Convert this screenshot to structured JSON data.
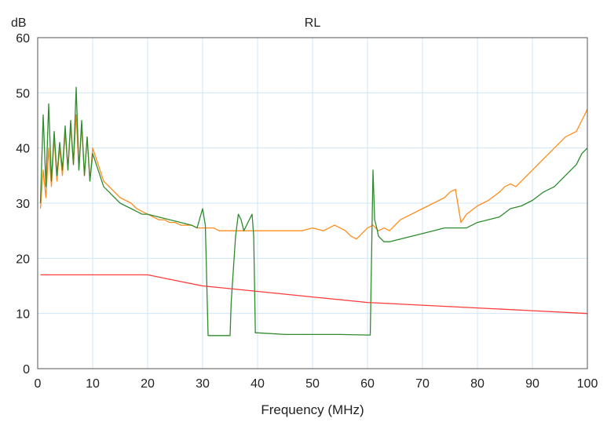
{
  "chart_data": {
    "type": "line",
    "title": "RL",
    "ylabel": "dB",
    "xlabel": "Frequency (MHz)",
    "xlim": [
      0,
      100
    ],
    "ylim": [
      0,
      60
    ],
    "xticks": [
      "0",
      "10",
      "20",
      "30",
      "40",
      "50",
      "60",
      "70",
      "80",
      "90",
      "100"
    ],
    "yticks": [
      "0",
      "10",
      "20",
      "30",
      "40",
      "50",
      "60"
    ],
    "grid": true,
    "legend": "none",
    "series": [
      {
        "color": "#ff8c1a",
        "x": [
          0.5,
          1,
          1.5,
          2,
          2.5,
          3,
          3.5,
          4,
          4.5,
          5,
          5.5,
          6,
          6.5,
          7,
          7.5,
          8,
          8.5,
          9,
          9.5,
          10,
          11,
          12,
          13,
          14,
          15,
          16,
          17,
          18,
          19,
          20,
          21,
          22,
          23,
          24,
          25,
          26,
          27,
          28,
          29,
          30,
          31,
          32,
          33,
          34,
          35,
          36,
          37,
          38,
          39,
          40,
          42,
          44,
          46,
          48,
          50,
          52,
          54,
          55,
          56,
          57,
          58,
          59,
          60,
          61,
          62,
          63,
          64,
          66,
          68,
          70,
          72,
          74,
          75,
          76,
          77,
          78,
          80,
          82,
          84,
          85,
          86,
          87,
          88,
          90,
          92,
          94,
          96,
          98,
          99,
          100
        ],
        "y": [
          29,
          36,
          31,
          40,
          33,
          42,
          34,
          40,
          35,
          43,
          36,
          44,
          37,
          46,
          36,
          44,
          35,
          42,
          34,
          40,
          37,
          34,
          33,
          32,
          31,
          30.5,
          30,
          29,
          28.5,
          28,
          27.5,
          27,
          27,
          26.5,
          26.5,
          26,
          26,
          26,
          25.5,
          25.5,
          25.5,
          25.5,
          25,
          25,
          25,
          25,
          25,
          25,
          25,
          25,
          25,
          25,
          25,
          25,
          25.5,
          25,
          26,
          25.5,
          25,
          24,
          23.5,
          24.5,
          25.5,
          26,
          25,
          25.5,
          25,
          27,
          28,
          29,
          30,
          31,
          32,
          32.5,
          26.5,
          28,
          29.5,
          30.5,
          32,
          33,
          33.5,
          33,
          34,
          36,
          38,
          40,
          42,
          43,
          45,
          47
        ]
      },
      {
        "color": "#2e8b2e",
        "x": [
          0.5,
          1,
          1.5,
          2,
          2.5,
          3,
          3.5,
          4,
          4.5,
          5,
          5.5,
          6,
          6.5,
          7,
          7.5,
          8,
          8.5,
          9,
          9.5,
          10,
          11,
          12,
          13,
          14,
          15,
          16,
          17,
          18,
          19,
          20,
          22,
          24,
          26,
          28,
          29,
          30,
          30.5,
          31,
          31.5,
          35,
          35.2,
          36,
          36.5,
          37,
          37.5,
          38,
          38.5,
          39,
          39.3,
          39.6,
          40,
          45,
          50,
          55,
          60,
          60.5,
          61,
          61.3,
          61.8,
          62,
          63,
          64,
          66,
          68,
          70,
          72,
          74,
          76,
          78,
          80,
          82,
          84,
          86,
          88,
          90,
          92,
          94,
          96,
          98,
          99,
          100
        ],
        "y": [
          30,
          46,
          33,
          48,
          34,
          43,
          35,
          41,
          36,
          44,
          36,
          45,
          37,
          51,
          36,
          45,
          35,
          42,
          34,
          39,
          36,
          33,
          32,
          31,
          30,
          29.5,
          29,
          28.5,
          28,
          28,
          27.5,
          27,
          26.5,
          26,
          25.5,
          29,
          26,
          6,
          6,
          6,
          12,
          24,
          28,
          27,
          25,
          26,
          27,
          28,
          24,
          6.5,
          6.5,
          6.2,
          6.2,
          6.2,
          6.1,
          6.1,
          36,
          27,
          25,
          24,
          23,
          23,
          23.5,
          24,
          24.5,
          25,
          25.5,
          25.5,
          25.5,
          26.5,
          27,
          27.5,
          29,
          29.5,
          30.5,
          32,
          33,
          35,
          37,
          39,
          40
        ]
      },
      {
        "color": "#ff3b3b",
        "x": [
          0.5,
          20,
          25,
          30,
          40,
          50,
          60,
          70,
          80,
          90,
          100
        ],
        "y": [
          17,
          17,
          16,
          15,
          14,
          13,
          12,
          11.5,
          11,
          10.5,
          10
        ]
      }
    ]
  }
}
